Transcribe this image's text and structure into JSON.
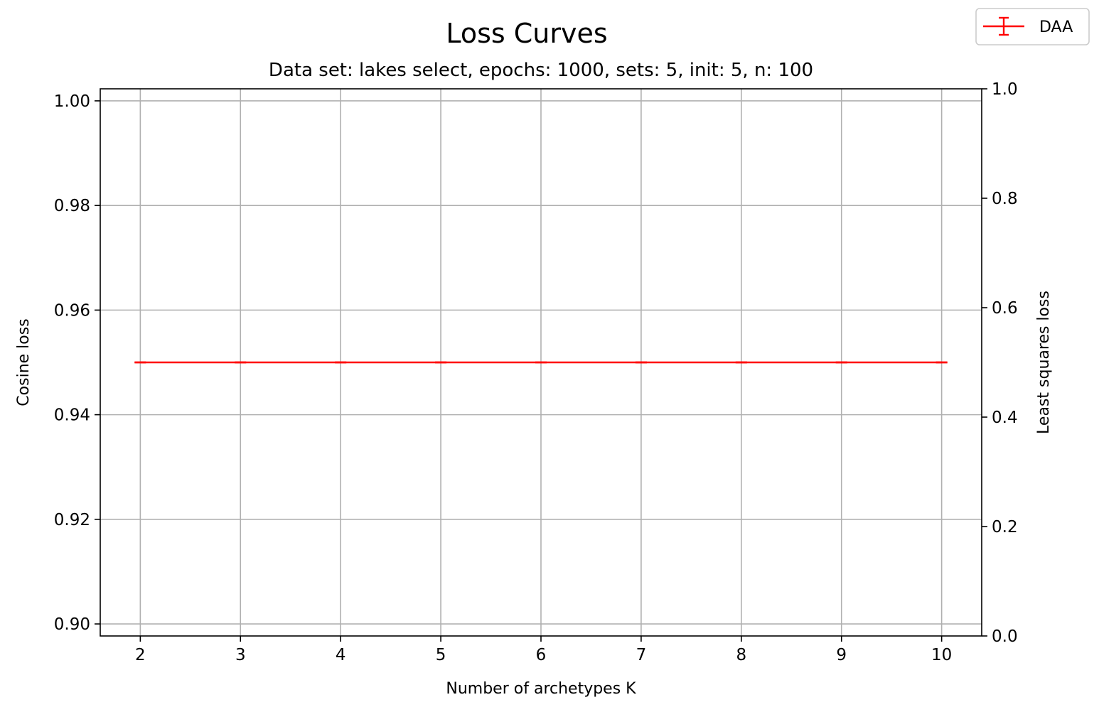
{
  "chart_data": {
    "type": "line",
    "title": "Loss Curves",
    "subtitle": "Data set:  lakes select, epochs: 1000, sets: 5, init: 5, n: 100",
    "xlabel": "Number of archetypes K",
    "ylabel": "Cosine loss",
    "ylabel_right": "Least squares loss",
    "x": [
      2,
      3,
      4,
      5,
      6,
      7,
      8,
      9,
      10
    ],
    "xlim": [
      1.6,
      10.4
    ],
    "ylim": [
      0.8977,
      1.0023
    ],
    "ylim_right": [
      0.0,
      1.0
    ],
    "x_ticks": [
      "2",
      "3",
      "4",
      "5",
      "6",
      "7",
      "8",
      "9",
      "10"
    ],
    "y_ticks": [
      "0.90",
      "0.92",
      "0.94",
      "0.96",
      "0.98",
      "1.00"
    ],
    "y_ticks_right": [
      "0.0",
      "0.2",
      "0.4",
      "0.6",
      "0.8",
      "1.0"
    ],
    "grid": true,
    "legend_position": "top-right",
    "series": [
      {
        "name": "DAA",
        "color": "#ff0000",
        "axis": "left",
        "values": [
          0.95,
          0.95,
          0.95,
          0.95,
          0.95,
          0.95,
          0.95,
          0.95,
          0.95
        ],
        "error": [
          0,
          0,
          0,
          0,
          0,
          0,
          0,
          0,
          0
        ]
      }
    ]
  }
}
